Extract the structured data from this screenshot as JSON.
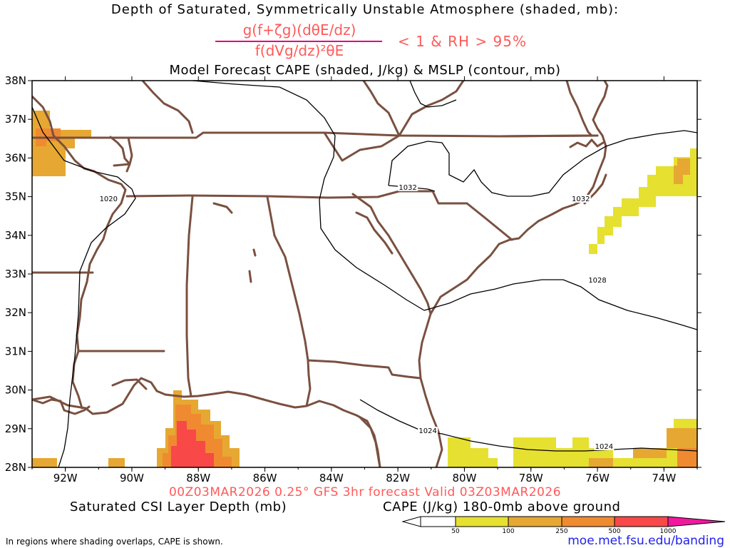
{
  "header": {
    "title_line1": "Depth of Saturated, Symmetrically Unstable Atmosphere (shaded, mb):",
    "formula_numerator": "g(f+ζg)(dθE/dz)",
    "formula_denominator": "f(dVg/dz)²θE",
    "formula_condition": "< 1 & RH > 95%",
    "title_line3": "Model Forecast CAPE (shaded, J/kg) & MSLP (contour, mb)"
  },
  "map": {
    "lat_labels": [
      "38N",
      "37N",
      "36N",
      "35N",
      "34N",
      "33N",
      "32N",
      "31N",
      "30N",
      "29N",
      "28N"
    ],
    "lon_labels": [
      "92W",
      "90W",
      "88W",
      "86W",
      "84W",
      "82W",
      "80W",
      "78W",
      "76W",
      "74W"
    ],
    "contour_labels": [
      {
        "value": "1020",
        "lon": -90.7,
        "lat": 34.9
      },
      {
        "value": "1032",
        "lon": -81.7,
        "lat": 35.2
      },
      {
        "value": "1032",
        "lon": -76.5,
        "lat": 34.9
      },
      {
        "value": "1028",
        "lon": -76.0,
        "lat": 32.8
      },
      {
        "value": "1024",
        "lon": -81.1,
        "lat": 28.9
      },
      {
        "value": "1024",
        "lon": -75.8,
        "lat": 28.5
      }
    ],
    "colors": {
      "border": "#7a5040",
      "contour": "#000000",
      "cape_50": "#e6e030",
      "cape_100": "#e6a832",
      "cape_250": "#f08a30",
      "cape_500": "#f84848",
      "cape_1000": "#f0199e"
    }
  },
  "footer": {
    "forecast_line": "00Z03MAR2026 0.25° GFS 3hr forecast Valid 03Z03MAR2026",
    "csi_label": "Saturated CSI Layer Depth (mb)",
    "cape_label": "CAPE (J/kg) 180-0mb above ground",
    "colorbar_ticks": [
      "50",
      "100",
      "250",
      "500",
      "1000"
    ],
    "note": "In regions where shading overlaps, CAPE is shown.",
    "url": "moe.met.fsu.edu/banding"
  }
}
